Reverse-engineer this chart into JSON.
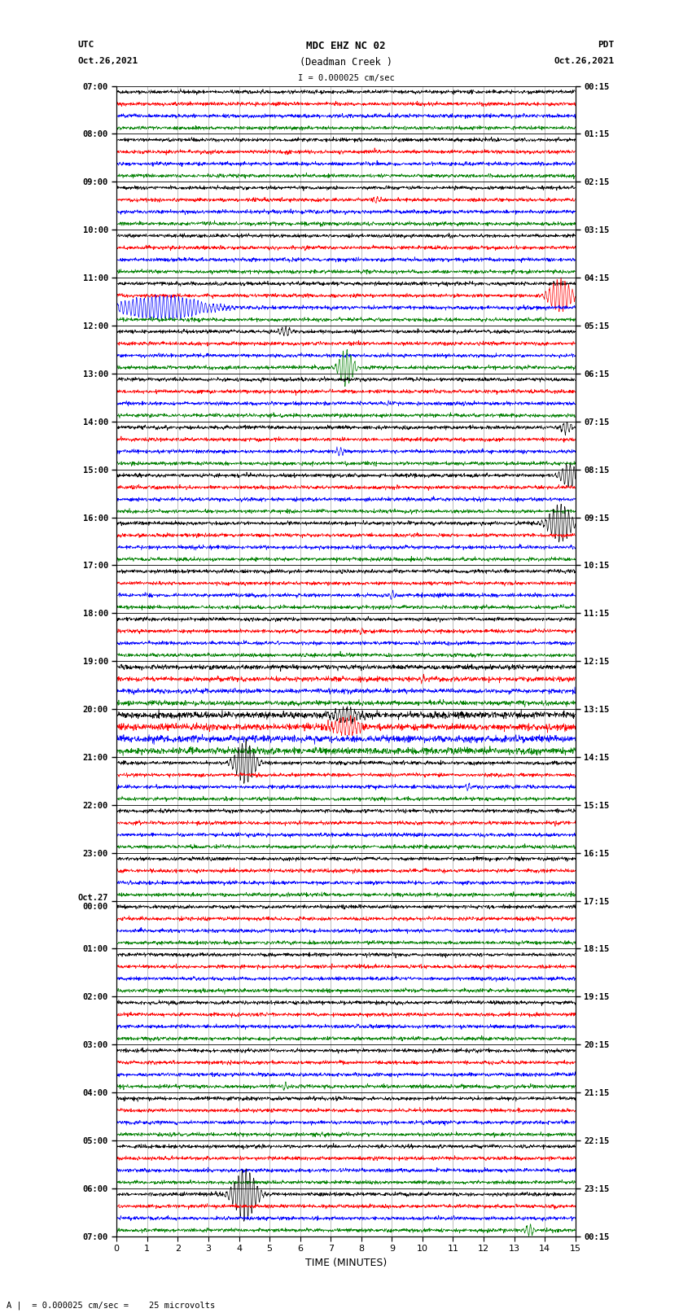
{
  "title_line1": "MDC EHZ NC 02",
  "title_line2": "(Deadman Creek )",
  "scale_label": "I = 0.000025 cm/sec",
  "left_label": "UTC",
  "left_date": "Oct.26,2021",
  "right_label": "PDT",
  "right_date": "Oct.26,2021",
  "bottom_label": "TIME (MINUTES)",
  "bottom_note": "A |  = 0.000025 cm/sec =    25 microvolts",
  "xlabel_ticks": [
    0,
    1,
    2,
    3,
    4,
    5,
    6,
    7,
    8,
    9,
    10,
    11,
    12,
    13,
    14,
    15
  ],
  "xlim": [
    0,
    15
  ],
  "background_color": "#ffffff",
  "trace_colors": [
    "black",
    "red",
    "blue",
    "green"
  ],
  "left_time_labels": [
    "07:00",
    "08:00",
    "09:00",
    "10:00",
    "11:00",
    "12:00",
    "13:00",
    "14:00",
    "15:00",
    "16:00",
    "17:00",
    "18:00",
    "19:00",
    "20:00",
    "21:00",
    "22:00",
    "23:00",
    "Oct.27\n00:00",
    "01:00",
    "02:00",
    "03:00",
    "04:00",
    "05:00",
    "06:00",
    "07:00"
  ],
  "right_time_labels": [
    "00:15",
    "01:15",
    "02:15",
    "03:15",
    "04:15",
    "05:15",
    "06:15",
    "07:15",
    "08:15",
    "09:15",
    "10:15",
    "11:15",
    "12:15",
    "13:15",
    "14:15",
    "15:15",
    "16:15",
    "17:15",
    "18:15",
    "19:15",
    "20:15",
    "21:15",
    "22:15",
    "23:15",
    "00:15"
  ],
  "num_hours": 24,
  "traces_per_hour": 4,
  "noise_amplitude": 0.018,
  "noise_seed": 42,
  "fig_width": 8.5,
  "fig_height": 16.13,
  "dpi": 100
}
